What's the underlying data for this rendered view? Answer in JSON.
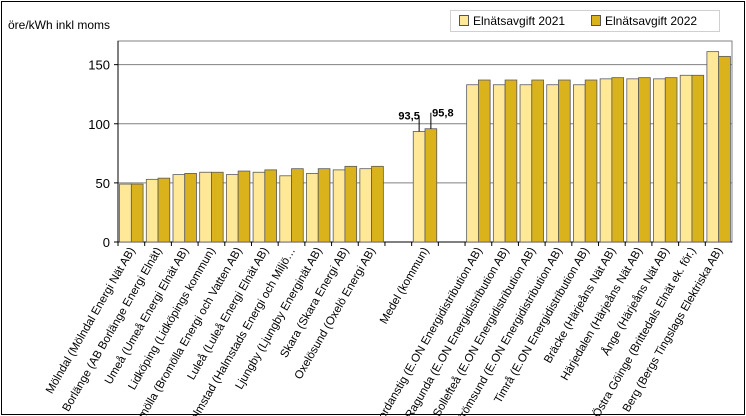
{
  "chart_data": {
    "type": "bar",
    "ylabel": "öre/kWh inkl moms",
    "ylim": [
      0,
      170
    ],
    "yticks": [
      0,
      50,
      100,
      150
    ],
    "grid": true,
    "legend_position": "top-right",
    "categories": [
      "Mölndal (Mölndal Energi Nät AB)",
      "Borlänge (AB Borlänge Energi Elnät)",
      "Umeå (Umeå Energi Elnät AB)",
      "Lidköping (Lidköpings kommun)",
      "Bromölla (Bromölla Energi och Vatten AB)",
      "Luleå (Luleå Energi Elnät AB)",
      "Halmstad (Halmstads Energi och Miljö…",
      "Ljungby (Ljungby Energinät AB)",
      "Skara (Skara Energi AB)",
      "Oxelösund (Oxelö Energi AB)",
      "",
      "Medel (kommun)",
      "",
      "Nordanstig (E.ON Energidistribution AB)",
      "Ragunda (E.ON Energidistribution AB)",
      "Sollefteå (E.ON Energidistribution AB)",
      "Strömsund (E.ON Energidistribution AB)",
      "Timrå (E.ON Energidistribution AB)",
      "Bräcke (Härjeåns Nät AB)",
      "Härjedalen (Härjeåns Nät AB)",
      "Ånge (Härjeåns Nät AB)",
      "Östra Göinge (Brittedals Elnät ek. för.)",
      "Berg (Bergs Tingslags Elektriska AB)"
    ],
    "series": [
      {
        "name": "Elnätsavgift 2021",
        "color": "#FFE999",
        "values": [
          49,
          53,
          57,
          59,
          57,
          59,
          56,
          58,
          61,
          62,
          null,
          93.5,
          null,
          133,
          133,
          133,
          133,
          133,
          138,
          138,
          138,
          141,
          161
        ]
      },
      {
        "name": "Elnätsavgift 2022",
        "color": "#D9B21C",
        "values": [
          49,
          54,
          58,
          59,
          60,
          61,
          62,
          62,
          64,
          64,
          null,
          95.8,
          null,
          137,
          137,
          137,
          137,
          137,
          139,
          139,
          139,
          141,
          157
        ]
      }
    ],
    "data_labels": [
      {
        "category_index": 11,
        "series_index": 0,
        "text": "93,5"
      },
      {
        "category_index": 11,
        "series_index": 1,
        "text": "95,8"
      }
    ]
  }
}
